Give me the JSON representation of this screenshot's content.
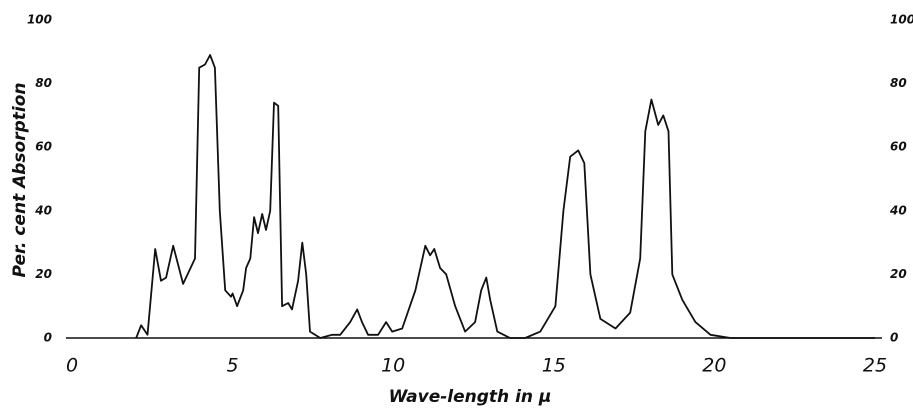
{
  "chart_data": {
    "type": "line",
    "x_label": "Wave-length in μ",
    "y_label": "Per. cent Absorption",
    "x": [
      2.0,
      2.15,
      2.35,
      2.59,
      2.77,
      2.93,
      3.15,
      3.46,
      3.83,
      3.96,
      4.14,
      4.3,
      4.45,
      4.6,
      4.77,
      4.95,
      5.0,
      5.14,
      5.33,
      5.42,
      5.55,
      5.67,
      5.79,
      5.92,
      6.04,
      6.17,
      6.29,
      6.42,
      6.54,
      6.73,
      6.85,
      7.04,
      7.17,
      7.29,
      7.41,
      7.73,
      8.1,
      8.35,
      8.66,
      8.88,
      9.03,
      9.22,
      9.53,
      9.78,
      9.97,
      10.28,
      10.69,
      11.0,
      11.15,
      11.28,
      11.46,
      11.65,
      11.93,
      12.24,
      12.55,
      12.74,
      12.9,
      13.02,
      13.24,
      13.64,
      14.11,
      14.58,
      15.05,
      15.3,
      15.51,
      15.76,
      15.95,
      16.14,
      16.45,
      16.92,
      17.38,
      17.69,
      17.85,
      18.04,
      18.25,
      18.41,
      18.57,
      18.69,
      19.0,
      19.41,
      19.88,
      20.5,
      25.0
    ],
    "values": [
      0,
      4,
      1,
      28,
      18,
      19,
      29,
      17,
      25,
      85,
      86,
      89,
      85,
      40,
      15,
      13,
      14,
      10,
      15,
      22,
      25,
      38,
      33,
      39,
      34,
      40,
      74,
      73,
      10,
      11,
      9,
      18,
      30,
      20,
      2,
      0,
      1,
      1,
      5,
      9,
      5,
      1,
      1,
      5,
      2,
      3,
      15,
      29,
      26,
      28,
      22,
      20,
      10,
      2,
      5,
      15,
      19,
      12,
      2,
      0,
      0,
      2,
      10,
      40,
      57,
      59,
      55,
      20,
      6,
      3,
      8,
      25,
      65,
      75,
      67,
      70,
      65,
      20,
      12,
      5,
      1,
      0,
      0
    ],
    "color": "#111111",
    "xlim": [
      0,
      25
    ],
    "xticks": [
      0,
      5,
      10,
      15,
      20,
      25
    ],
    "ylim": [
      0,
      100
    ],
    "yticks": [
      0,
      20,
      40,
      60,
      80,
      100
    ],
    "y2lim": [
      0,
      100
    ],
    "y2ticks": [
      0,
      20,
      40,
      60,
      80,
      100
    ],
    "grid": false
  }
}
